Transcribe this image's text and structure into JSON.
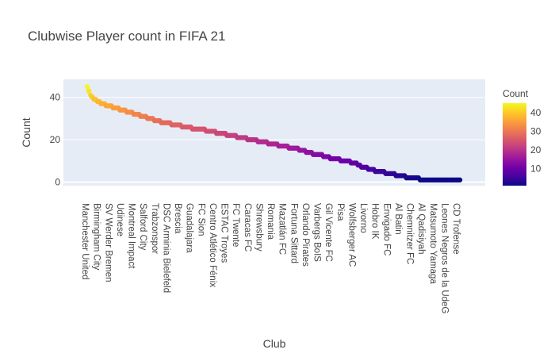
{
  "chart_data": {
    "type": "scatter",
    "title": "Clubwise Player count in FIFA 21",
    "xlabel": "Club",
    "ylabel": "Count",
    "ylim": [
      -1.7,
      48.5
    ],
    "y_ticks": [
      0,
      20,
      40
    ],
    "grid": true,
    "colorbar": {
      "title": "Count",
      "range": [
        1,
        45
      ],
      "ticks": [
        10,
        20,
        30,
        40
      ],
      "colorscale": [
        "#0d0887",
        "#46039f",
        "#7201a8",
        "#9c179e",
        "#bd3786",
        "#d8576b",
        "#ed7953",
        "#fb9f3a",
        "#fdca26",
        "#f0f921"
      ]
    },
    "x_tick_labels": [
      "Manchester United",
      "Birmingham City",
      "SV Werder Bremen",
      "Udinese",
      "Montreal Impact",
      "Salford City",
      "Trabzonspor",
      "DSC Arminia Bielefeld",
      "Brescia",
      "Guadalajara",
      "FC Sion",
      "Centro Atlético Fénix",
      "ESTAC Troyes",
      "FC Twente",
      "Caracas FC",
      "Shrewsbury",
      "Romania",
      "Mazatlán FC",
      "Fortuna Sittard",
      "Orlando Pirates",
      "Varbergs BoIS",
      "Gil Vicente FC",
      "Pisa",
      "Wolfsberger AC",
      "Livorno",
      "Hobro IK",
      "Envigado FC",
      "Al Batin",
      "Chemnitzer FC",
      "Al Qadisiyah",
      "Matsumoto Yamaga",
      "Leones Negros de la UdeG",
      "CD Trofense"
    ],
    "points_per_tick": 2,
    "profile": [
      [
        0,
        45
      ],
      [
        1,
        43
      ],
      [
        2,
        41
      ],
      [
        4,
        39
      ],
      [
        6,
        38
      ],
      [
        8,
        37
      ],
      [
        12,
        36
      ],
      [
        16,
        35
      ],
      [
        20,
        34
      ],
      [
        24,
        33
      ],
      [
        28,
        32
      ],
      [
        32,
        31
      ],
      [
        36,
        30
      ],
      [
        40,
        29
      ],
      [
        44,
        28
      ],
      [
        48,
        27.5
      ],
      [
        52,
        27
      ],
      [
        56,
        26
      ],
      [
        60,
        25.5
      ],
      [
        64,
        25
      ],
      [
        68,
        24.5
      ],
      [
        72,
        24
      ],
      [
        76,
        23
      ],
      [
        80,
        22.5
      ],
      [
        84,
        22
      ],
      [
        88,
        21
      ],
      [
        92,
        20.5
      ],
      [
        96,
        20
      ],
      [
        100,
        19
      ],
      [
        104,
        18.5
      ],
      [
        108,
        18
      ],
      [
        112,
        17
      ],
      [
        116,
        16.5
      ],
      [
        120,
        16
      ],
      [
        124,
        15
      ],
      [
        128,
        14
      ],
      [
        132,
        13
      ],
      [
        136,
        12.5
      ],
      [
        140,
        11.5
      ],
      [
        144,
        11
      ],
      [
        148,
        10
      ],
      [
        152,
        9.5
      ],
      [
        156,
        8.5
      ],
      [
        160,
        7
      ],
      [
        164,
        6
      ],
      [
        168,
        5
      ],
      [
        172,
        4.5
      ],
      [
        176,
        4
      ],
      [
        180,
        3
      ],
      [
        184,
        2.5
      ],
      [
        188,
        2
      ],
      [
        192,
        1.5
      ],
      [
        196,
        1
      ],
      [
        216,
        1
      ]
    ],
    "total_points": 217
  }
}
